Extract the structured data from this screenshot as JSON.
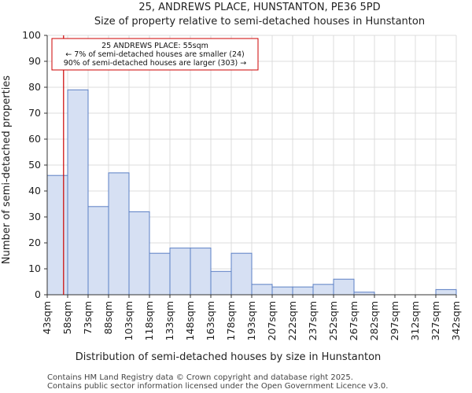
{
  "chart_data": {
    "type": "histogram",
    "title": "25, ANDREWS PLACE, HUNSTANTON, PE36 5PD",
    "subtitle": "Size of property relative to semi-detached houses in Hunstanton",
    "xlabel": "Distribution of semi-detached houses by size in Hunstanton",
    "ylabel": "Number of semi-detached properties",
    "ylim": [
      0,
      100
    ],
    "yticks": [
      0,
      10,
      20,
      30,
      40,
      50,
      60,
      70,
      80,
      90,
      100
    ],
    "bin_start": 43,
    "bin_width": 15,
    "categories": [
      "43sqm",
      "58sqm",
      "73sqm",
      "88sqm",
      "103sqm",
      "118sqm",
      "133sqm",
      "148sqm",
      "163sqm",
      "178sqm",
      "193sqm",
      "207sqm",
      "222sqm",
      "237sqm",
      "252sqm",
      "267sqm",
      "282sqm",
      "297sqm",
      "312sqm",
      "327sqm",
      "342sqm"
    ],
    "values": [
      46,
      79,
      34,
      47,
      32,
      16,
      18,
      18,
      9,
      16,
      4,
      3,
      3,
      4,
      6,
      1,
      0,
      0,
      0,
      2
    ],
    "grid": true,
    "bar_color": "#d6e0f3",
    "bar_edge_color": "#5b7fc4",
    "marker": {
      "value": 55,
      "color": "#cc0000",
      "annotation": [
        "25 ANDREWS PLACE: 55sqm",
        "← 7% of semi-detached houses are smaller (24)",
        "90% of semi-detached houses are larger (303) →"
      ]
    }
  },
  "footer": {
    "line1": "Contains HM Land Registry data © Crown copyright and database right 2025.",
    "line2": "Contains public sector information licensed under the Open Government Licence v3.0."
  }
}
